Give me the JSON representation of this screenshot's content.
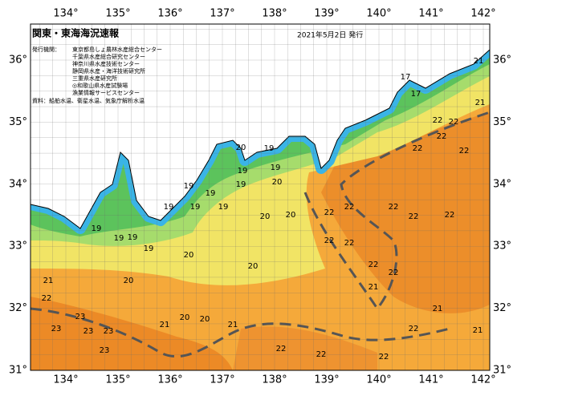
{
  "header": {
    "title": "関東・東海海況速報",
    "date": "2021年5月2日 発行"
  },
  "issuers": {
    "label": "発行機関：",
    "names": [
      "東京都島しょ農林水産総合センター",
      "千葉県水産総合研究センター",
      "神奈川県水産技術センター",
      "静岡県水産・海洋技術研究所",
      "三重県水産研究所",
      "◎和歌山県水産試験場",
      "漁業情報サービスセンター"
    ]
  },
  "source": "資料：船舶水温、衛星水温、気象庁解析水温",
  "axes": {
    "lon": [
      "134°",
      "135°",
      "136°",
      "137°",
      "138°",
      "139°",
      "140°",
      "141°",
      "142°"
    ],
    "lat": [
      "31°",
      "32°",
      "33°",
      "34°",
      "35°",
      "36°"
    ]
  },
  "temperature_labels": [
    "17",
    "17",
    "21",
    "21",
    "22",
    "22",
    "22",
    "22",
    "22",
    "20",
    "19",
    "19",
    "19",
    "19",
    "20",
    "19",
    "19",
    "19",
    "19",
    "19",
    "19",
    "19",
    "19",
    "19",
    "20",
    "20",
    "22",
    "22",
    "22",
    "22",
    "22",
    "22",
    "22",
    "22",
    "22",
    "20",
    "20",
    "20",
    "21",
    "22",
    "23",
    "23",
    "23",
    "23",
    "23",
    "21",
    "20",
    "20",
    "21",
    "22",
    "22",
    "21",
    "22",
    "22",
    "21",
    "21"
  ]
}
